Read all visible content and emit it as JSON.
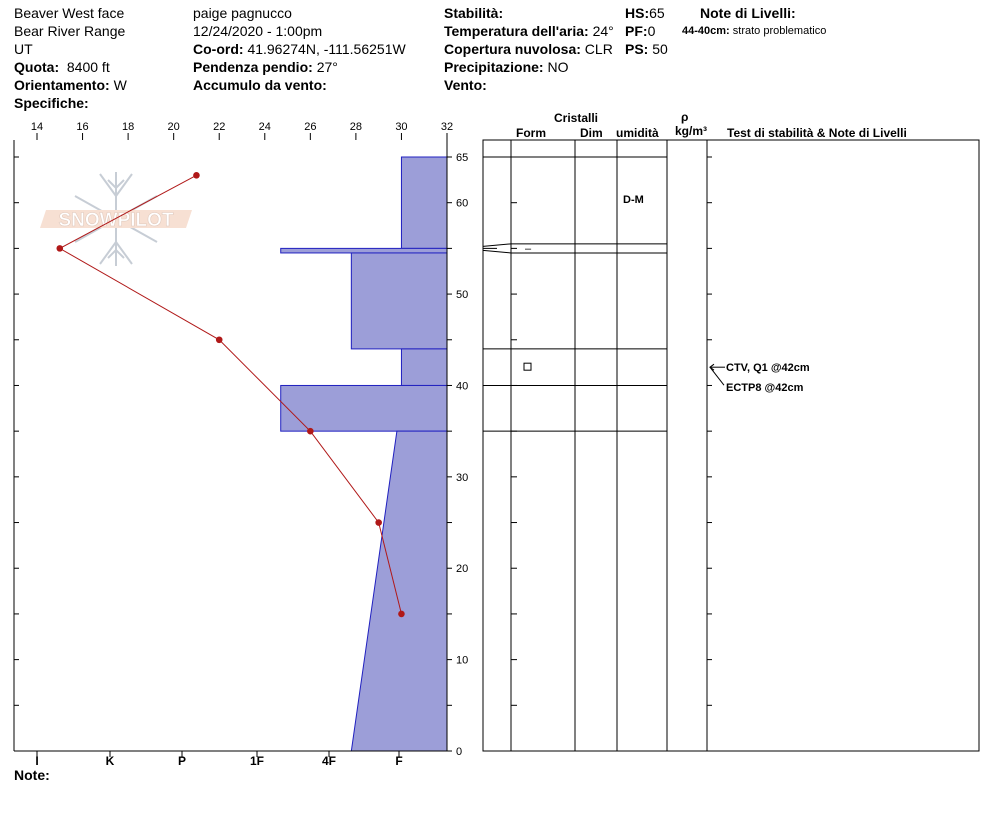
{
  "header": {
    "location": "Beaver West face",
    "range": "Bear River Range",
    "state": "UT",
    "quota_label": "Quota:",
    "quota_value": "8400 ft",
    "orientation_label": "Orientamento:",
    "orientation_value": "W",
    "specifiche_label": "Specifiche:",
    "observer": "paige pagnucco",
    "datetime": "12/24/2020 - 1:00pm",
    "coord_label": "Co-ord:",
    "coord_value": "41.96274N, -111.56251W",
    "pendenza_label": "Pendenza pendio:",
    "pendenza_value": "27°",
    "accumulo_label": "Accumulo da vento:",
    "stabilita_label": "Stabilità:",
    "temperatura_label": "Temperatura dell'aria:",
    "temperatura_value": "24°",
    "copertura_label": "Copertura nuvolosa:",
    "copertura_value": "CLR",
    "precipitazione_label": "Precipitazione:",
    "precipitazione_value": "NO",
    "vento_label": "Vento:",
    "hs_label": "HS:",
    "hs_value": "65",
    "pf_label": "PF:",
    "pf_value": "0",
    "ps_label": "PS:",
    "ps_value": "50",
    "note_livelli_label": "Note di Livelli:",
    "note_livelli_depth": "44-40cm:",
    "note_livelli_text": "strato problematico"
  },
  "columns": {
    "cristalli": "Cristalli",
    "form": "Form",
    "dim": "Dim",
    "umidita": "umidità",
    "rho": "ρ",
    "density_unit": "kg/m³",
    "stability_notes": "Test di stabilità & Note di Livelli"
  },
  "note_label": "Note:",
  "logo_text": "SNOWPILOT",
  "layer_labels": {
    "wetness_top": "D-M",
    "dash": "–",
    "test1": "CTV, Q1 @42cm",
    "test2": "ECTP8 @42cm"
  },
  "chart_data": {
    "type": "snow-profile",
    "temperature_axis": {
      "ticks": [
        14,
        16,
        18,
        20,
        22,
        24,
        26,
        28,
        30,
        32
      ],
      "range": [
        13,
        32
      ]
    },
    "height_axis": {
      "ticks": [
        0,
        10,
        20,
        30,
        40,
        50,
        60,
        65
      ],
      "range": [
        0,
        66
      ]
    },
    "hardness_axis": {
      "ticks": [
        "I",
        "K",
        "P",
        "1F",
        "4F",
        "F"
      ]
    },
    "temperature_profile": [
      {
        "temp": 21,
        "height": 63
      },
      {
        "temp": 15,
        "height": 55
      },
      {
        "temp": 22,
        "height": 45
      },
      {
        "temp": 26,
        "height": 35
      },
      {
        "temp": 29,
        "height": 25
      },
      {
        "temp": 30,
        "height": 15
      }
    ],
    "hardness_layers": [
      {
        "top": 65,
        "bottom": 55,
        "hardness_temp": 30
      },
      {
        "top": 55,
        "bottom": 54.5,
        "hardness_temp": 24.7
      },
      {
        "top": 54.5,
        "bottom": 44,
        "hardness_temp": 27.8
      },
      {
        "top": 44,
        "bottom": 40,
        "hardness_temp": 30
      },
      {
        "top": 40,
        "bottom": 35,
        "hardness_temp": 24.7
      }
    ],
    "hardness_gradient": {
      "top": 35,
      "bottom": 0,
      "temp_top": 29.8,
      "temp_bottom": 27.8
    },
    "layer_boundaries": [
      65,
      55.5,
      54.5,
      44,
      40,
      35
    ],
    "test_depth": 42
  }
}
